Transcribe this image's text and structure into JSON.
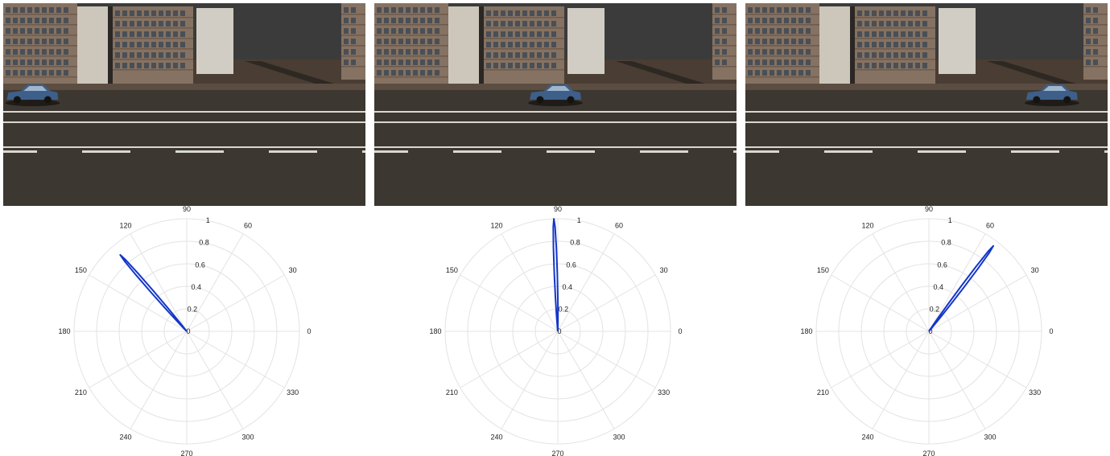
{
  "colors": {
    "sky": "#3b3b3b",
    "road": "#3d3731",
    "lane_marking": "#d8d8d0",
    "car": "#3d5f8a",
    "polar_grid": "#e3e3e3",
    "polar_line": "#1436c8"
  },
  "chart_data": [
    {
      "type": "polar",
      "angle_ticks": [
        "0",
        "30",
        "60",
        "90",
        "120",
        "150",
        "180",
        "210",
        "240",
        "270",
        "300",
        "330"
      ],
      "radial_ticks": [
        "0",
        "0.2",
        "0.4",
        "0.6",
        "0.8",
        "1"
      ],
      "rlim": [
        0,
        1
      ],
      "peak": {
        "angle_deg": 131,
        "r": 0.9
      },
      "grid": true
    },
    {
      "type": "polar",
      "angle_ticks": [
        "0",
        "30",
        "60",
        "90",
        "120",
        "150",
        "180",
        "210",
        "240",
        "270",
        "300",
        "330"
      ],
      "radial_ticks": [
        "0",
        "0.2",
        "0.4",
        "0.6",
        "0.8",
        "1"
      ],
      "rlim": [
        0,
        1
      ],
      "peak": {
        "angle_deg": 92,
        "r": 1.0
      },
      "grid": true
    },
    {
      "type": "polar",
      "angle_ticks": [
        "0",
        "30",
        "60",
        "90",
        "120",
        "150",
        "180",
        "210",
        "240",
        "270",
        "300",
        "330"
      ],
      "radial_ticks": [
        "0",
        "0.2",
        "0.4",
        "0.6",
        "0.8",
        "1"
      ],
      "rlim": [
        0,
        1
      ],
      "peak": {
        "angle_deg": 53,
        "r": 0.95
      },
      "grid": true
    }
  ],
  "scenes": [
    {
      "car_icon": "car-side-icon",
      "car_position": 0.04
    },
    {
      "car_icon": "car-side-icon",
      "car_position": 0.5
    },
    {
      "car_icon": "car-side-icon",
      "car_position": 0.88
    }
  ]
}
